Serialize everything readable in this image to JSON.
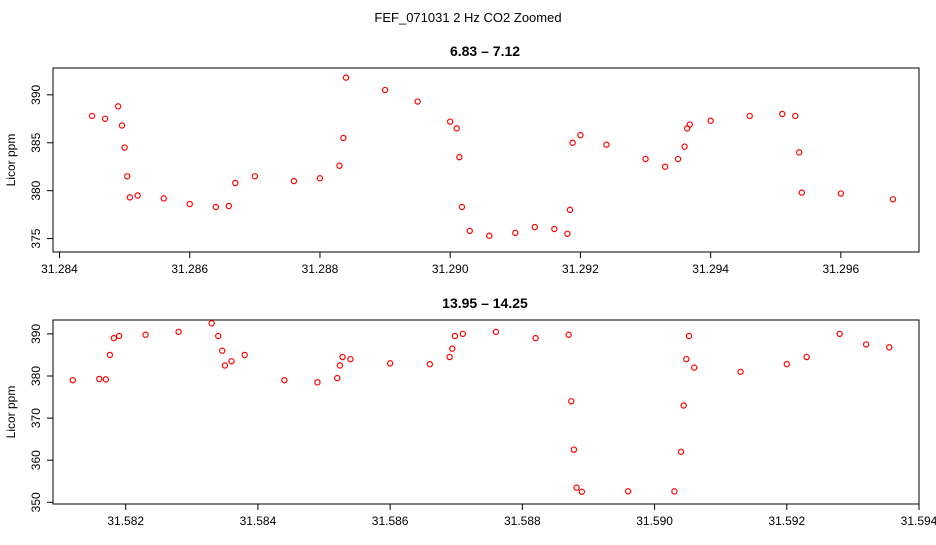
{
  "figure": {
    "supertitle": "FEF_071031  2 Hz CO2 Zoomed",
    "point_color": "#ff0000"
  },
  "chart_data": [
    {
      "type": "scatter",
      "title": "6.83 – 7.12",
      "xlabel": "",
      "ylabel": "Licor ppm",
      "xlim": [
        31.2839,
        31.2972
      ],
      "ylim": [
        373.6,
        392.8
      ],
      "xticks": [
        "31.284",
        "31.286",
        "31.288",
        "31.290",
        "31.292",
        "31.294",
        "31.296"
      ],
      "xtick_values": [
        31.284,
        31.286,
        31.288,
        31.29,
        31.292,
        31.294,
        31.296
      ],
      "yticks": [
        "375",
        "380",
        "385",
        "390"
      ],
      "ytick_values": [
        375,
        380,
        385,
        390
      ],
      "marker": "open-circle",
      "grid": false,
      "series": [
        {
          "x": [
            31.2845,
            31.2847,
            31.2849,
            31.28496,
            31.285,
            31.28504,
            31.28508,
            31.2852,
            31.2856,
            31.286,
            31.2864,
            31.2866,
            31.2867,
            31.287,
            31.2876,
            31.288,
            31.2883,
            31.28836,
            31.2884,
            31.289,
            31.2895,
            31.29,
            31.2901,
            31.29014,
            31.29018,
            31.2903,
            31.2906,
            31.291,
            31.2913,
            31.2916,
            31.2918,
            31.29184,
            31.29188,
            31.292,
            31.2924,
            31.293,
            31.2933,
            31.2935,
            31.2936,
            31.29364,
            31.29368,
            31.294,
            31.2946,
            31.2951,
            31.2953,
            31.29536,
            31.2954,
            31.296,
            31.2968
          ],
          "y": [
            387.8,
            387.5,
            388.8,
            386.8,
            384.5,
            381.5,
            379.3,
            379.5,
            379.2,
            378.6,
            378.3,
            378.4,
            380.8,
            381.5,
            381.0,
            381.3,
            382.6,
            385.5,
            391.8,
            390.5,
            389.3,
            387.2,
            386.5,
            383.5,
            378.3,
            375.8,
            375.3,
            375.6,
            376.2,
            376.0,
            375.5,
            378.0,
            385.0,
            385.8,
            384.8,
            383.3,
            382.5,
            383.3,
            384.6,
            386.5,
            386.9,
            387.3,
            387.8,
            388.0,
            387.8,
            384.0,
            379.8,
            379.7,
            379.1
          ]
        }
      ]
    },
    {
      "type": "scatter",
      "title": "13.95 – 14.25",
      "xlabel": "",
      "ylabel": "Licor ppm",
      "xlim": [
        31.5809,
        31.594
      ],
      "ylim": [
        349.6,
        393.3
      ],
      "xticks": [
        "31.582",
        "31.584",
        "31.586",
        "31.588",
        "31.590",
        "31.592",
        "31.594"
      ],
      "xtick_values": [
        31.582,
        31.584,
        31.586,
        31.588,
        31.59,
        31.592,
        31.594
      ],
      "yticks": [
        "350",
        "360",
        "370",
        "380",
        "390"
      ],
      "ytick_values": [
        350,
        360,
        370,
        380,
        390
      ],
      "marker": "open-circle",
      "grid": false,
      "series": [
        {
          "x": [
            31.5812,
            31.5816,
            31.5817,
            31.58176,
            31.58182,
            31.5819,
            31.5823,
            31.5828,
            31.5833,
            31.5834,
            31.58346,
            31.5835,
            31.5836,
            31.5838,
            31.5844,
            31.5849,
            31.5852,
            31.58524,
            31.58528,
            31.5854,
            31.586,
            31.5866,
            31.5869,
            31.58694,
            31.58698,
            31.5871,
            31.5876,
            31.5882,
            31.5887,
            31.58874,
            31.58878,
            31.58882,
            31.5889,
            31.5896,
            31.5903,
            31.5904,
            31.59044,
            31.59048,
            31.59052,
            31.5906,
            31.5913,
            31.592,
            31.5923,
            31.5928,
            31.5932,
            31.59355
          ],
          "y": [
            379.0,
            379.3,
            379.2,
            385.0,
            389.0,
            389.5,
            389.8,
            390.5,
            392.5,
            389.5,
            386.0,
            382.5,
            383.5,
            385.0,
            379.0,
            378.5,
            379.5,
            382.5,
            384.5,
            384.0,
            383.0,
            382.8,
            384.5,
            386.5,
            389.5,
            390.0,
            390.5,
            389.0,
            389.8,
            374.0,
            362.5,
            353.5,
            352.5,
            352.6,
            352.6,
            362.0,
            373.0,
            384.0,
            389.5,
            382.0,
            381.0,
            382.8,
            384.5,
            390.0,
            387.5,
            386.8
          ]
        }
      ]
    }
  ]
}
